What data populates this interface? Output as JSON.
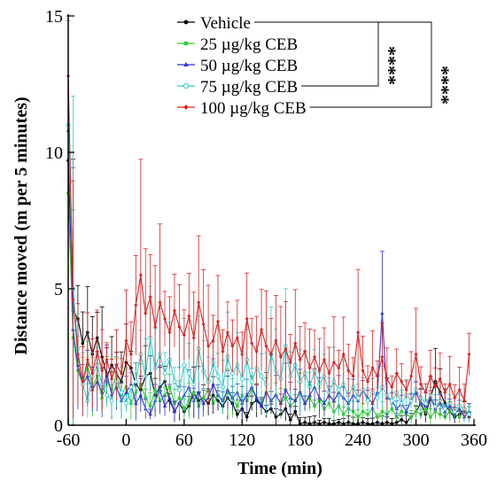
{
  "chart_data": {
    "type": "line",
    "xlabel": "Time (min)",
    "ylabel": "Distance moved (m per 5 minutes)",
    "xlim": [
      -60,
      360
    ],
    "ylim": [
      0,
      15
    ],
    "xticks": [
      -60,
      0,
      60,
      120,
      180,
      240,
      300,
      360
    ],
    "yticks": [
      0,
      5,
      10,
      15
    ],
    "grid": false,
    "legend_position": "top-right",
    "significance": [
      {
        "label": "****",
        "bracket": "Vehicle vs 75 µg/kg CEB"
      },
      {
        "label": "****",
        "bracket": "Vehicle vs 100 µg/kg CEB"
      }
    ],
    "series": [
      {
        "name": "Vehicle",
        "color": "#000000",
        "marker": "circle",
        "x": [
          -60,
          -55,
          -50,
          -45,
          -40,
          -35,
          -30,
          -25,
          -20,
          -15,
          -10,
          -5,
          0,
          5,
          10,
          15,
          20,
          25,
          30,
          35,
          40,
          45,
          50,
          55,
          60,
          65,
          70,
          75,
          80,
          85,
          90,
          95,
          100,
          105,
          110,
          115,
          120,
          125,
          130,
          135,
          140,
          145,
          150,
          155,
          160,
          165,
          170,
          175,
          180,
          185,
          190,
          195,
          200,
          205,
          210,
          215,
          220,
          225,
          230,
          235,
          240,
          245,
          250,
          255,
          260,
          265,
          270,
          275,
          280,
          285,
          290,
          295,
          300,
          305,
          310,
          315,
          320,
          325,
          330,
          335,
          340,
          345,
          350,
          355
        ],
        "y": [
          9.7,
          4.2,
          3.9,
          3.0,
          3.4,
          2.6,
          3.2,
          2.5,
          1.8,
          2.2,
          1.9,
          1.6,
          2.3,
          2.1,
          1.5,
          1.3,
          1.8,
          1.9,
          1.1,
          1.4,
          1.6,
          0.9,
          0.5,
          0.8,
          0.5,
          0.7,
          1.2,
          0.9,
          1.0,
          0.8,
          1.1,
          0.9,
          0.7,
          1.0,
          0.8,
          0.4,
          0.6,
          0.3,
          0.8,
          0.9,
          0.7,
          0.5,
          0.6,
          0.3,
          0.4,
          0.6,
          0.2,
          0.5,
          0.05,
          0.1,
          0.05,
          0.1,
          0.05,
          0.1,
          0.05,
          0.05,
          0.1,
          0.05,
          0.1,
          0.05,
          0.05,
          0.1,
          0.05,
          0.05,
          0.1,
          0.05,
          0.1,
          0.05,
          0.1,
          0.2,
          0.1,
          0.3,
          0.5,
          0.8,
          0.4,
          1.0,
          1.6,
          1.2,
          0.8,
          0.5,
          0.3,
          0.4,
          0.6,
          0.3
        ]
      },
      {
        "name": "25 µg/kg CEB",
        "color": "#33cc33",
        "marker": "square",
        "x": [
          -60,
          -55,
          -50,
          -45,
          -40,
          -35,
          -30,
          -25,
          -20,
          -15,
          -10,
          -5,
          0,
          5,
          10,
          15,
          20,
          25,
          30,
          35,
          40,
          45,
          50,
          55,
          60,
          65,
          70,
          75,
          80,
          85,
          90,
          95,
          100,
          105,
          110,
          115,
          120,
          125,
          130,
          135,
          140,
          145,
          150,
          155,
          160,
          165,
          170,
          175,
          180,
          185,
          190,
          195,
          200,
          205,
          210,
          215,
          220,
          225,
          230,
          235,
          240,
          245,
          250,
          255,
          260,
          265,
          270,
          275,
          280,
          285,
          290,
          295,
          300,
          305,
          310,
          315,
          320,
          325,
          330,
          335,
          340,
          345,
          350,
          355
        ],
        "y": [
          8.5,
          3.2,
          2.0,
          1.5,
          2.2,
          1.4,
          1.8,
          1.0,
          1.6,
          1.3,
          1.9,
          1.1,
          1.4,
          0.8,
          1.2,
          1.5,
          1.0,
          0.7,
          1.3,
          0.9,
          1.1,
          1.4,
          0.8,
          1.0,
          0.6,
          0.9,
          1.2,
          0.7,
          1.0,
          1.3,
          0.8,
          1.1,
          0.9,
          1.2,
          1.0,
          0.7,
          1.1,
          0.9,
          1.3,
          1.0,
          0.8,
          1.2,
          0.9,
          1.1,
          0.8,
          1.0,
          0.7,
          0.9,
          1.2,
          0.8,
          1.0,
          0.7,
          0.9,
          0.6,
          0.8,
          0.5,
          0.7,
          0.4,
          0.6,
          0.5,
          0.3,
          0.5,
          0.4,
          0.6,
          0.3,
          0.5,
          0.4,
          0.6,
          0.3,
          0.5,
          0.4,
          0.3,
          0.5,
          0.4,
          0.6,
          0.3,
          0.5,
          0.4,
          0.3,
          0.5,
          0.4,
          0.3,
          0.5,
          0.4
        ]
      },
      {
        "name": "50 µg/kg CEB",
        "color": "#3333cc",
        "marker": "triangle",
        "x": [
          -60,
          -55,
          -50,
          -45,
          -40,
          -35,
          -30,
          -25,
          -20,
          -15,
          -10,
          -5,
          0,
          5,
          10,
          15,
          20,
          25,
          30,
          35,
          40,
          45,
          50,
          55,
          60,
          65,
          70,
          75,
          80,
          85,
          90,
          95,
          100,
          105,
          110,
          115,
          120,
          125,
          130,
          135,
          140,
          145,
          150,
          155,
          160,
          165,
          170,
          175,
          180,
          185,
          190,
          195,
          200,
          205,
          210,
          215,
          220,
          225,
          230,
          235,
          240,
          245,
          250,
          255,
          260,
          265,
          270,
          275,
          280,
          285,
          290,
          295,
          300,
          305,
          310,
          315,
          320,
          325,
          330,
          335,
          340,
          345,
          350,
          355
        ],
        "y": [
          10.8,
          3.5,
          2.2,
          1.5,
          1.8,
          1.3,
          1.6,
          1.2,
          1.9,
          1.1,
          1.4,
          0.9,
          1.2,
          1.5,
          0.8,
          1.1,
          0.6,
          0.4,
          0.9,
          1.3,
          0.7,
          1.0,
          0.5,
          0.8,
          1.1,
          1.4,
          0.9,
          1.2,
          0.8,
          1.0,
          1.5,
          1.1,
          0.9,
          1.3,
          1.0,
          1.2,
          0.8,
          1.1,
          1.4,
          1.0,
          0.7,
          1.2,
          0.9,
          1.1,
          0.8,
          1.3,
          1.0,
          0.9,
          1.2,
          0.8,
          1.1,
          1.4,
          1.0,
          0.8,
          1.1,
          0.9,
          1.2,
          1.0,
          0.8,
          1.1,
          0.9,
          1.3,
          1.0,
          0.8,
          1.2,
          4.1,
          1.0,
          0.9,
          0.6,
          0.8,
          0.5,
          0.9,
          1.2,
          0.8,
          0.7,
          1.0,
          0.6,
          0.8,
          0.5,
          0.7,
          0.4,
          0.6,
          0.3,
          0.5
        ]
      },
      {
        "name": "75 µg/kg CEB",
        "color": "#33cccc",
        "marker": "circle-open",
        "x": [
          -60,
          -55,
          -50,
          -45,
          -40,
          -35,
          -30,
          -25,
          -20,
          -15,
          -10,
          -5,
          0,
          5,
          10,
          15,
          20,
          25,
          30,
          35,
          40,
          45,
          50,
          55,
          60,
          65,
          70,
          75,
          80,
          85,
          90,
          95,
          100,
          105,
          110,
          115,
          120,
          125,
          130,
          135,
          140,
          145,
          150,
          155,
          160,
          165,
          170,
          175,
          180,
          185,
          190,
          195,
          200,
          205,
          210,
          215,
          220,
          225,
          230,
          235,
          240,
          245,
          250,
          255,
          260,
          265,
          270,
          275,
          280,
          285,
          290,
          295,
          300,
          305,
          310,
          315,
          320,
          325,
          330,
          335,
          340,
          345,
          350,
          355
        ],
        "y": [
          11.0,
          5.0,
          2.8,
          1.5,
          0.9,
          1.8,
          2.2,
          1.5,
          1.1,
          0.9,
          1.6,
          1.2,
          0.8,
          1.4,
          1.6,
          2.6,
          1.8,
          3.2,
          2.1,
          2.6,
          1.9,
          2.4,
          1.6,
          1.3,
          2.2,
          1.9,
          1.5,
          2.8,
          2.0,
          1.6,
          2.3,
          1.8,
          1.4,
          2.5,
          1.9,
          2.2,
          1.7,
          2.4,
          1.6,
          2.1,
          1.8,
          1.5,
          2.6,
          2.0,
          1.7,
          2.9,
          1.8,
          2.2,
          1.6,
          1.9,
          1.4,
          2.0,
          1.5,
          1.8,
          1.2,
          1.6,
          1.3,
          1.5,
          1.1,
          1.4,
          1.0,
          1.3,
          0.9,
          1.2,
          1.0,
          1.4,
          1.1,
          0.9,
          1.2,
          0.8,
          1.1,
          0.9,
          1.3,
          1.0,
          0.8,
          1.1,
          0.7,
          0.9,
          0.6,
          0.8,
          0.5,
          0.7,
          0.6,
          0.4
        ]
      },
      {
        "name": "100 µg/kg CEB",
        "color": "#dd2222",
        "marker": "diamond",
        "x": [
          -60,
          -55,
          -50,
          -45,
          -40,
          -35,
          -30,
          -25,
          -20,
          -15,
          -10,
          -5,
          0,
          5,
          10,
          15,
          20,
          25,
          30,
          35,
          40,
          45,
          50,
          55,
          60,
          65,
          70,
          75,
          80,
          85,
          90,
          95,
          100,
          105,
          110,
          115,
          120,
          125,
          130,
          135,
          140,
          145,
          150,
          155,
          160,
          165,
          170,
          175,
          180,
          185,
          190,
          195,
          200,
          205,
          210,
          215,
          220,
          225,
          230,
          235,
          240,
          245,
          250,
          255,
          260,
          265,
          270,
          275,
          280,
          285,
          290,
          295,
          300,
          305,
          310,
          315,
          320,
          325,
          330,
          335,
          340,
          345,
          350,
          355
        ],
        "y": [
          12.8,
          4.6,
          2.6,
          1.6,
          2.4,
          1.9,
          2.7,
          2.0,
          2.4,
          1.7,
          2.2,
          1.9,
          3.1,
          2.6,
          4.4,
          5.5,
          4.1,
          4.7,
          3.6,
          4.5,
          3.9,
          3.4,
          4.2,
          3.6,
          3.3,
          4.0,
          3.2,
          4.5,
          3.7,
          2.9,
          3.1,
          3.8,
          2.7,
          3.4,
          2.9,
          3.2,
          2.6,
          3.9,
          3.0,
          2.7,
          3.5,
          2.9,
          2.6,
          3.1,
          2.5,
          2.8,
          2.3,
          3.0,
          2.4,
          2.7,
          2.1,
          2.5,
          2.0,
          2.4,
          1.9,
          2.3,
          2.1,
          2.6,
          2.0,
          1.8,
          3.4,
          2.0,
          1.6,
          2.1,
          1.8,
          2.5,
          1.7,
          1.4,
          1.9,
          1.6,
          1.3,
          1.8,
          2.6,
          1.5,
          1.2,
          1.8,
          1.4,
          1.7,
          1.2,
          1.5,
          1.0,
          1.3,
          0.9,
          2.6
        ]
      }
    ]
  }
}
